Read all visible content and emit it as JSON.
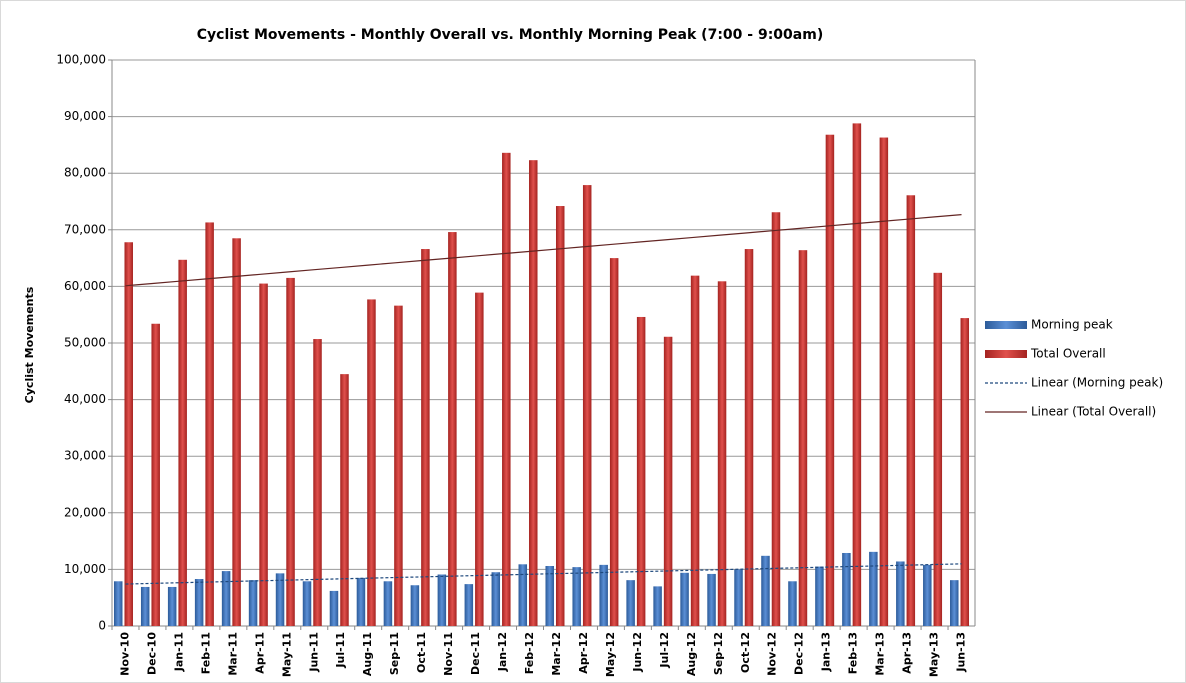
{
  "chart_data": {
    "type": "bar",
    "title": "Cyclist Movements - Monthly Overall vs. Monthly Morning  Peak (7:00 - 9:00am)",
    "y_label": "Cyclist Movements",
    "categories": [
      "Nov-10",
      "Dec-10",
      "Jan-11",
      "Feb-11",
      "Mar-11",
      "Apr-11",
      "May-11",
      "Jun-11",
      "Jul-11",
      "Aug-11",
      "Sep-11",
      "Oct-11",
      "Nov-11",
      "Dec-11",
      "Jan-12",
      "Feb-12",
      "Mar-12",
      "Apr-12",
      "May-12",
      "Jun-12",
      "Jul-12",
      "Aug-12",
      "Sep-12",
      "Oct-12",
      "Nov-12",
      "Dec-12",
      "Jan-13",
      "Feb-13",
      "Mar-13",
      "Apr-13",
      "May-13",
      "Jun-13"
    ],
    "series": [
      {
        "name": "Morning peak",
        "color": "#4f81bd",
        "values": [
          7900,
          6900,
          6900,
          8300,
          9700,
          8100,
          9300,
          7900,
          6200,
          8500,
          7900,
          7200,
          9100,
          7400,
          9500,
          10900,
          10600,
          10400,
          10800,
          8100,
          7000,
          9400,
          9200,
          10000,
          12400,
          7900,
          10500,
          12900,
          13100,
          11400,
          10800,
          8100
        ]
      },
      {
        "name": "Total Overall",
        "color": "#c0504d",
        "values": [
          67800,
          53400,
          64700,
          71300,
          68500,
          60500,
          61500,
          50700,
          44500,
          57700,
          56600,
          66600,
          69600,
          58900,
          83600,
          82300,
          74200,
          77900,
          65000,
          54600,
          51100,
          61900,
          60900,
          66600,
          73100,
          66400,
          86800,
          88800,
          86300,
          76100,
          62400,
          54400
        ]
      }
    ],
    "trendlines": [
      {
        "name": "Linear (Morning peak)",
        "color": "#1f497d",
        "dashed": true
      },
      {
        "name": "Linear (Total Overall)",
        "color": "#632523",
        "dashed": false
      }
    ],
    "ylim": [
      0,
      100000
    ],
    "yticks": [
      0,
      {
        "value": 10000,
        "label": "10,000"
      },
      {
        "value": 20000,
        "label": "20,000"
      },
      {
        "value": 30000,
        "label": "30,000"
      },
      {
        "value": 40000,
        "label": "40,000"
      },
      {
        "value": 50000,
        "label": "50,000"
      },
      {
        "value": 60000,
        "label": "60,000"
      },
      {
        "value": 70000,
        "label": "70,000"
      },
      {
        "value": 80000,
        "label": "80,000"
      },
      {
        "value": 90000,
        "label": "90,000"
      },
      {
        "value": 100000,
        "label": "100,000"
      }
    ],
    "grid": true,
    "legend": "right"
  }
}
